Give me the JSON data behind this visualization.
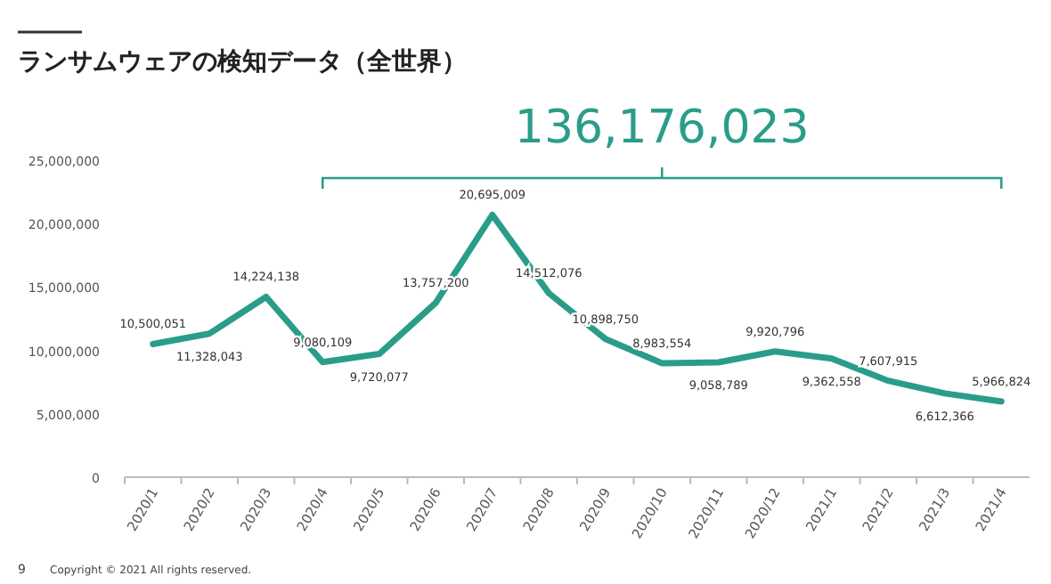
{
  "chart_data": {
    "type": "line",
    "title": "ランサムウェアの検知データ（全世界）",
    "categories": [
      "2020/1",
      "2020/2",
      "2020/3",
      "2020/4",
      "2020/5",
      "2020/6",
      "2020/7",
      "2020/8",
      "2020/9",
      "2020/10",
      "2020/11",
      "2020/12",
      "2021/1",
      "2021/2",
      "2021/3",
      "2021/4"
    ],
    "values": [
      10500051,
      11328043,
      14224138,
      9080109,
      9720077,
      13757200,
      20695009,
      14512076,
      10898750,
      8983554,
      9058789,
      9920796,
      9362558,
      7607915,
      6612366,
      5966824
    ],
    "value_labels": [
      "10,500,051",
      "11,328,043",
      "14,224,138",
      "9,080,109",
      "9,720,077",
      "13,757,200",
      "20,695,009",
      "14,512,076",
      "10,898,750",
      "8,983,554",
      "9,058,789",
      "9,920,796",
      "9,362,558",
      "7,607,915",
      "6,612,366",
      "5,966,824"
    ],
    "color": "#2a9d8a",
    "ylim": [
      0,
      25000000
    ],
    "yticks": [
      0,
      {
        "value": 5000000,
        "label": "5,000,000"
      },
      {
        "value": 10000000,
        "label": "10,000,000"
      },
      {
        "value": 15000000,
        "label": "15,000,000"
      },
      {
        "value": 20000000,
        "label": "20,000,000"
      },
      {
        "value": 25000000,
        "label": "25,000,000"
      }
    ],
    "marker": "none",
    "line_style": "solid",
    "annotations": [
      "136,176,023",
      "9",
      "Copyright © 2021 All rights reserved."
    ]
  }
}
